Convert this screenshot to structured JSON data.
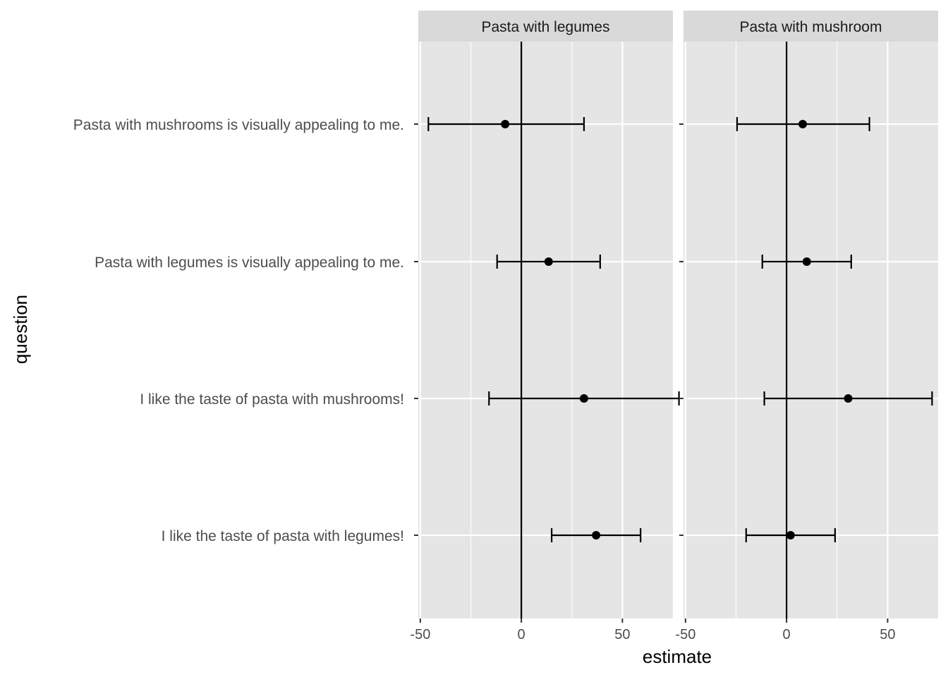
{
  "chart_data": {
    "type": "scatter",
    "subtype": "point-errorbar-faceted",
    "xlabel": "estimate",
    "ylabel": "question",
    "xlim": [
      -51,
      75
    ],
    "x_ticks": [
      -50,
      0,
      50
    ],
    "x_tick_labels": [
      "-50",
      "0",
      "50"
    ],
    "categories": [
      "Pasta with mushrooms is visually appealing to me.",
      "Pasta with legumes is visually appealing to me.",
      "I like the taste of pasta with mushrooms!",
      "I like the taste of pasta with legumes!"
    ],
    "reference_line_x": 0,
    "grid": true,
    "legend": "none",
    "facets": [
      {
        "label": "Pasta with legumes",
        "points": [
          {
            "category": "Pasta with mushrooms is visually appealing to me.",
            "estimate": -8,
            "low": -46,
            "high": 31
          },
          {
            "category": "Pasta with legumes is visually appealing to me.",
            "estimate": 13.5,
            "low": -12,
            "high": 39
          },
          {
            "category": "I like the taste of pasta with mushrooms!",
            "estimate": 31,
            "low": -16,
            "high": 78
          },
          {
            "category": "I like the taste of pasta with legumes!",
            "estimate": 37,
            "low": 15,
            "high": 59
          }
        ]
      },
      {
        "label": "Pasta with mushroom",
        "points": [
          {
            "category": "Pasta with mushrooms is visually appealing to me.",
            "estimate": 8,
            "low": -24.5,
            "high": 41
          },
          {
            "category": "Pasta with legumes is visually appealing to me.",
            "estimate": 10,
            "low": -12,
            "high": 32
          },
          {
            "category": "I like the taste of pasta with mushrooms!",
            "estimate": 30.5,
            "low": -11,
            "high": 72
          },
          {
            "category": "I like the taste of pasta with legumes!",
            "estimate": 2,
            "low": -20,
            "high": 24
          }
        ]
      }
    ],
    "colors": {
      "panel_background": "#e5e5e5",
      "strip_background": "#d9d9d9",
      "grid": "#ffffff",
      "marks": "#000000"
    }
  }
}
